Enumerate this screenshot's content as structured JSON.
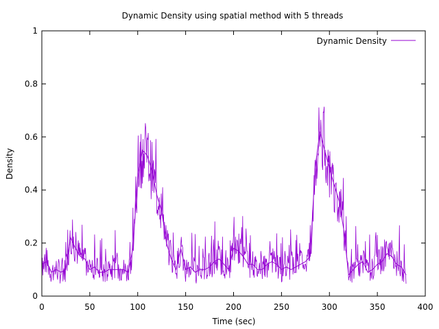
{
  "chart_data": {
    "type": "line",
    "title": "Dynamic Density using spatial method with 5 threads",
    "xlabel": "Time (sec)",
    "ylabel": "Density",
    "xlim": [
      0,
      400
    ],
    "ylim": [
      0,
      1
    ],
    "x_ticks": [
      0,
      50,
      100,
      150,
      200,
      250,
      300,
      350,
      400
    ],
    "y_ticks": [
      0,
      0.2,
      0.4,
      0.6,
      0.8,
      1
    ],
    "x_tick_labels": [
      "0",
      "50",
      "100",
      "150",
      "200",
      "250",
      "300",
      "350",
      "400"
    ],
    "y_tick_labels": [
      "0",
      "0.2",
      "0.4",
      "0.6",
      "0.8",
      "1"
    ],
    "grid": false,
    "legend_position": "top-right",
    "series": [
      {
        "name": "Dynamic Density",
        "color": "#9400d3",
        "x": [
          0,
          5,
          10,
          15,
          20,
          25,
          30,
          35,
          40,
          45,
          50,
          55,
          60,
          65,
          70,
          75,
          80,
          85,
          90,
          95,
          100,
          105,
          110,
          115,
          120,
          125,
          130,
          135,
          140,
          145,
          150,
          155,
          160,
          165,
          170,
          175,
          180,
          185,
          190,
          195,
          200,
          205,
          210,
          215,
          220,
          225,
          230,
          235,
          240,
          245,
          250,
          255,
          260,
          265,
          270,
          275,
          280,
          285,
          290,
          295,
          300,
          305,
          310,
          315,
          320,
          325,
          330,
          335,
          340,
          345,
          350,
          355,
          360,
          365,
          370,
          375,
          380
        ],
        "y": [
          0.12,
          0.13,
          0.09,
          0.1,
          0.09,
          0.1,
          0.22,
          0.18,
          0.15,
          0.14,
          0.1,
          0.11,
          0.09,
          0.09,
          0.1,
          0.1,
          0.1,
          0.1,
          0.09,
          0.18,
          0.45,
          0.55,
          0.53,
          0.47,
          0.38,
          0.32,
          0.2,
          0.14,
          0.1,
          0.18,
          0.1,
          0.11,
          0.09,
          0.1,
          0.1,
          0.11,
          0.13,
          0.14,
          0.12,
          0.1,
          0.18,
          0.17,
          0.15,
          0.12,
          0.12,
          0.1,
          0.1,
          0.12,
          0.13,
          0.12,
          0.1,
          0.11,
          0.1,
          0.11,
          0.12,
          0.13,
          0.15,
          0.48,
          0.62,
          0.55,
          0.48,
          0.42,
          0.36,
          0.25,
          0.08,
          0.1,
          0.12,
          0.13,
          0.09,
          0.1,
          0.12,
          0.13,
          0.16,
          0.15,
          0.12,
          0.11,
          0.08
        ]
      }
    ]
  }
}
